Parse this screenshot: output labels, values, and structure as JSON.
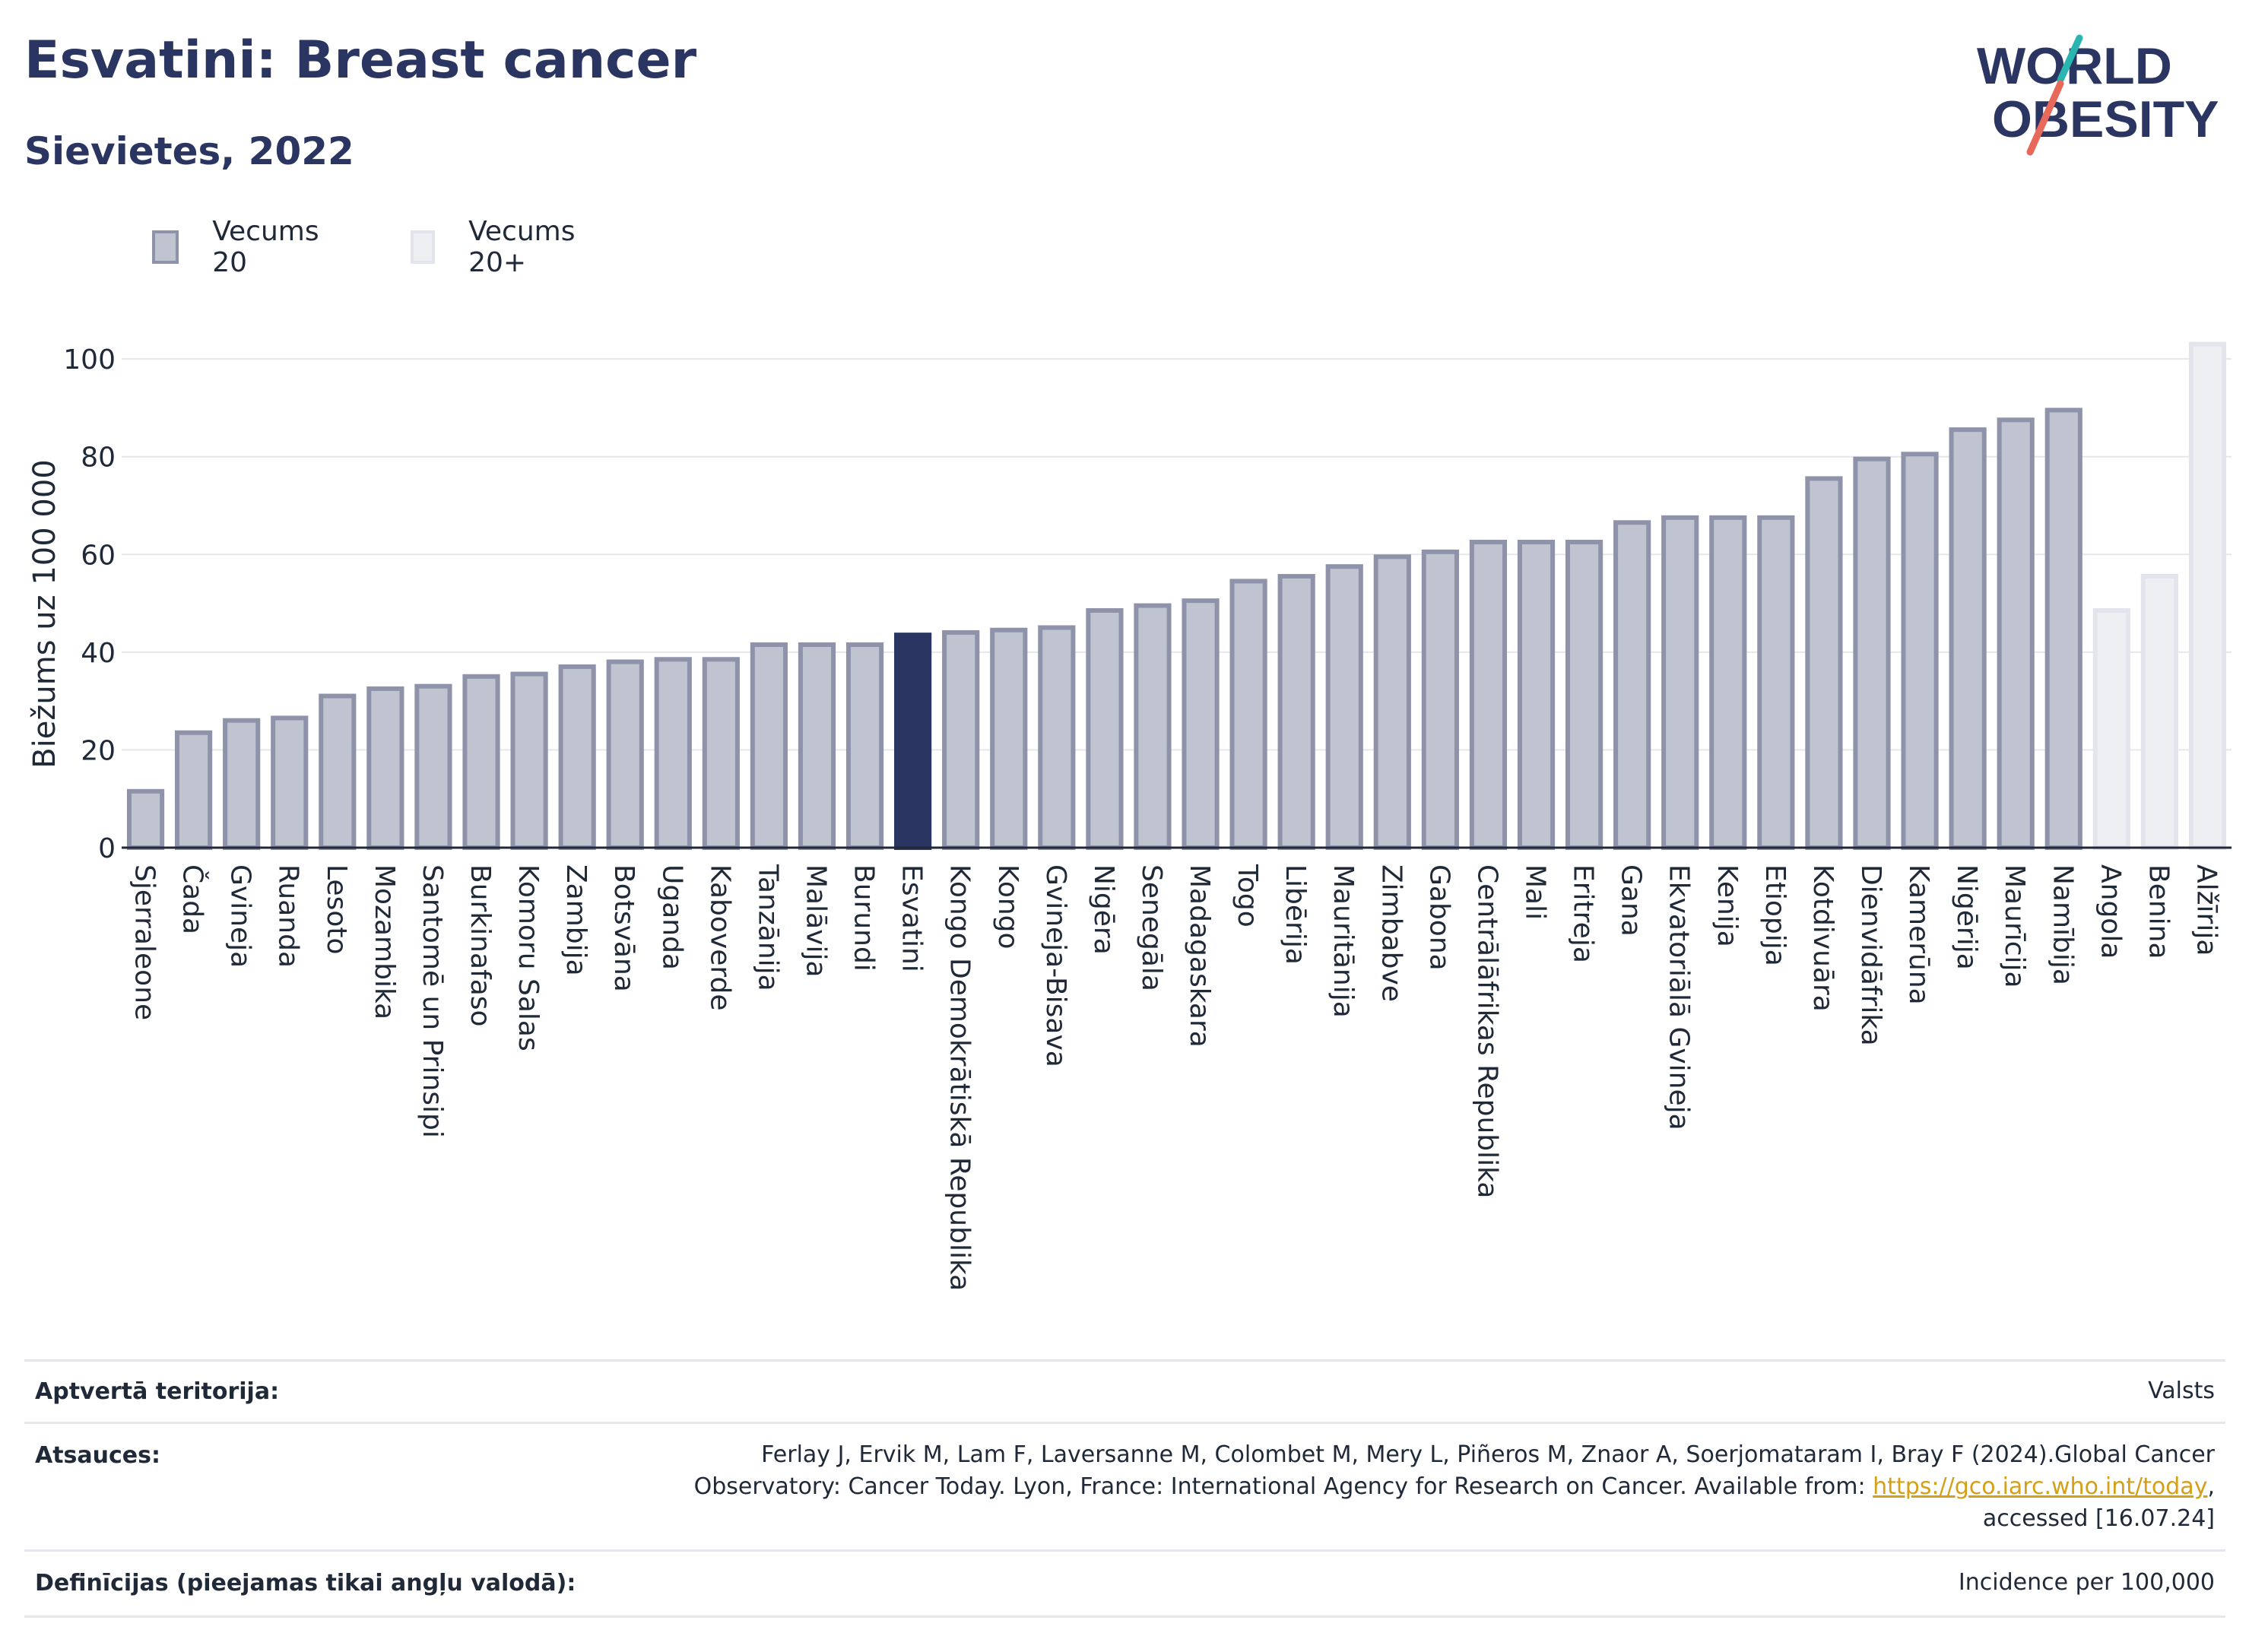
{
  "header": {
    "title": "Esvatini: Breast cancer",
    "subtitle": "Sievietes, 2022"
  },
  "logo": {
    "line1": "WORLD",
    "line2": "OBESITY",
    "colors": {
      "text": "#2b3561",
      "slash_teal": "#2bb5b0",
      "slash_coral": "#e8685a"
    }
  },
  "legend": {
    "items": [
      {
        "label": "Vecums 20",
        "color": "#c0c3d0"
      },
      {
        "label": "Vecums 20+",
        "color": "#eeeff3"
      }
    ]
  },
  "chart_data": {
    "type": "bar",
    "ylabel": "Biežums uz 100 000",
    "ylim": [
      0,
      105
    ],
    "yticks": [
      0,
      20,
      40,
      60,
      80,
      100
    ],
    "grid": true,
    "colors": {
      "main": "#c0c3d0",
      "main_border": "#8e93aa",
      "highlight": "#2b3561",
      "light": "#eeeff3",
      "light_border": "#e4e5ec"
    },
    "categories": [
      "Sjerraleone",
      "Čada",
      "Gvineja",
      "Ruanda",
      "Lesoto",
      "Mozambika",
      "Santomē un Prinsipi",
      "Burkinafaso",
      "Komoru Salas",
      "Zambija",
      "Botsvāna",
      "Uganda",
      "Kaboverde",
      "Tanzānija",
      "Malāvija",
      "Burundi",
      "Esvatini",
      "Kongo Demokrātiskā Republika",
      "Kongo",
      "Gvineja-Bisava",
      "Nigēra",
      "Senegāla",
      "Madagaskara",
      "Togo",
      "Libērija",
      "Mauritānija",
      "Zimbabve",
      "Gabona",
      "Centrālāfrikas Republika",
      "Mali",
      "Eritreja",
      "Gana",
      "Ekvatoriālā Gvineja",
      "Kenija",
      "Etiopija",
      "Kotdivuāra",
      "Dienvidāfrika",
      "Kamerūna",
      "Nigērija",
      "Maurīcija",
      "Namībija",
      "Angola",
      "Benina",
      "Alžīrija"
    ],
    "values": [
      12,
      24,
      26.5,
      27,
      31.5,
      33,
      33.5,
      35.5,
      36,
      37.5,
      38.5,
      39,
      39,
      42,
      42,
      42,
      44,
      44.5,
      45,
      45.5,
      49,
      50,
      51,
      55,
      56,
      58,
      60,
      61,
      63,
      63,
      63,
      67,
      68,
      68,
      68,
      76,
      80,
      81,
      86,
      88,
      90,
      49,
      56,
      103.5
    ],
    "groups": [
      "Vecums 20",
      "Vecums 20",
      "Vecums 20",
      "Vecums 20",
      "Vecums 20",
      "Vecums 20",
      "Vecums 20",
      "Vecums 20",
      "Vecums 20",
      "Vecums 20",
      "Vecums 20",
      "Vecums 20",
      "Vecums 20",
      "Vecums 20",
      "Vecums 20",
      "Vecums 20",
      "Vecums 20",
      "Vecums 20",
      "Vecums 20",
      "Vecums 20",
      "Vecums 20",
      "Vecums 20",
      "Vecums 20",
      "Vecums 20",
      "Vecums 20",
      "Vecums 20",
      "Vecums 20",
      "Vecums 20",
      "Vecums 20",
      "Vecums 20",
      "Vecums 20",
      "Vecums 20",
      "Vecums 20",
      "Vecums 20",
      "Vecums 20",
      "Vecums 20",
      "Vecums 20",
      "Vecums 20",
      "Vecums 20",
      "Vecums 20",
      "Vecums 20",
      "Vecums 20+",
      "Vecums 20+",
      "Vecums 20+"
    ],
    "highlight": "Esvatini"
  },
  "footer": {
    "territory_label": "Aptvertā teritorija:",
    "territory_value": "Valsts",
    "refs_label": "Atsauces:",
    "refs_line1": "Ferlay J, Ervik M, Lam F, Laversanne M, Colombet M, Mery L, Piñeros M, Znaor A, Soerjomataram I, Bray F (2024).Global Cancer",
    "refs_line2_pre": "Observatory: Cancer Today. Lyon, France: International Agency for Research on Cancer. Available from: ",
    "refs_link": "https://gco.iarc.who.int/today",
    "refs_line2_post": ",",
    "refs_line3": "accessed [16.07.24]",
    "defs_label": "Definīcijas (pieejamas tikai angļu valodā):",
    "defs_value": "Incidence per 100,000"
  }
}
